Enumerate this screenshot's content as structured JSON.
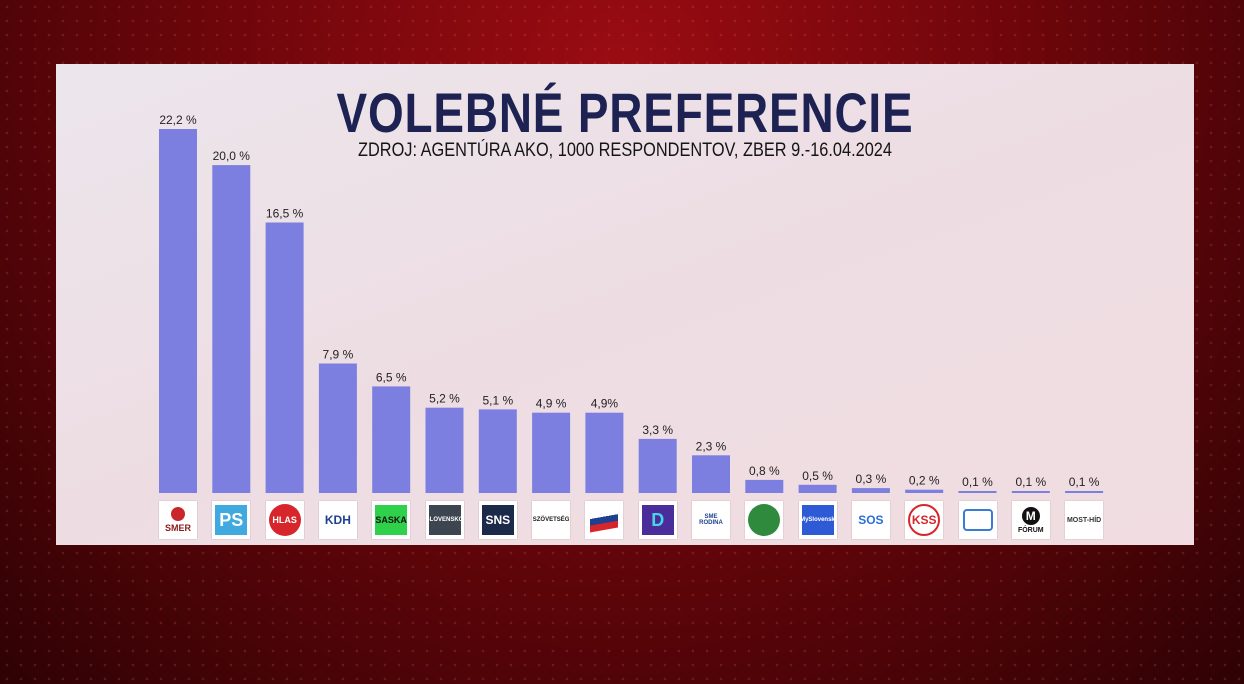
{
  "header": {
    "title": "VOLEBNÉ PREFERENCIE",
    "subtitle": "ZDROJ: AGENTÚRA AKO,  1000 RESPONDENTOV, ZBER 9.-16.04.2024"
  },
  "chart_data": {
    "type": "bar",
    "title": "VOLEBNÉ PREFERENCIE",
    "subtitle": "ZDROJ: AGENTÚRA AKO,  1000 RESPONDENTOV, ZBER 9.-16.04.2024",
    "categories": [
      "SMER",
      "PS",
      "HLAS",
      "KDH",
      "SASKA",
      "SLOVENSKO",
      "SNS",
      "SZÖVETSÉG",
      "REPUBLIKA",
      "DEMOKRATI",
      "SME RODINA",
      "MATICA",
      "MY SLOVENSKO",
      "SOS",
      "KSS",
      "MLADÝ SLOVÁCI",
      "FÓRUM",
      "MOST-HÍD"
    ],
    "values": [
      22.2,
      20.0,
      16.5,
      7.9,
      6.5,
      5.2,
      5.1,
      4.9,
      4.9,
      3.3,
      2.3,
      0.8,
      0.5,
      0.3,
      0.2,
      0.1,
      0.1,
      0.1
    ],
    "value_labels": [
      "22,2 %",
      "20,0 %",
      "16,5 %",
      "7,9 %",
      "6,5 %",
      "5,2 %",
      "5,1 %",
      "4,9 %",
      "4,9%",
      "3,3 %",
      "2,3 %",
      "0,8 %",
      "0,5 %",
      "0,3 %",
      "0,2 %",
      "0,1 %",
      "0,1 %",
      "0,1 %"
    ],
    "ylim": [
      0,
      22.2
    ],
    "grid": false,
    "bar_color": "#7d7fe0"
  },
  "logos": [
    {
      "icon": "smer-rose-icon",
      "text": "SMER",
      "fg": "#8a1b1b",
      "bg": "#ffffff"
    },
    {
      "icon": "ps-icon",
      "text": "PS",
      "fg": "#ffffff",
      "bg": "#3fa9e0"
    },
    {
      "icon": "hlas-icon",
      "text": "HLAS",
      "fg": "#ffffff",
      "bg": "#d6262b"
    },
    {
      "icon": "kdh-icon",
      "text": "KDH",
      "fg": "#1f3f8f",
      "bg": "#ffffff"
    },
    {
      "icon": "saska-icon",
      "text": "SASKA",
      "fg": "#111111",
      "bg": "#2fd14a"
    },
    {
      "icon": "slovensko-icon",
      "text": "SLOVENSKO",
      "fg": "#ffffff",
      "bg": "#3d4650"
    },
    {
      "icon": "sns-icon",
      "text": "SNS",
      "fg": "#ffffff",
      "bg": "#1c2a4a"
    },
    {
      "icon": "szovetseg-icon",
      "text": "SZÖVETSÉG",
      "fg": "#1a1a1a",
      "bg": "#ffffff"
    },
    {
      "icon": "republika-icon",
      "text": "",
      "fg": "#ffffff",
      "bg": "#ffffff"
    },
    {
      "icon": "demokrati-icon",
      "text": "D",
      "fg": "#49d3e6",
      "bg": "#4a2d9a"
    },
    {
      "icon": "sme-rodina-icon",
      "text": "SME RODINA",
      "fg": "#1f3f8f",
      "bg": "#ffffff"
    },
    {
      "icon": "matica-icon",
      "text": "",
      "fg": "#ffffff",
      "bg": "#2f8a3d"
    },
    {
      "icon": "my-slovensko-icon",
      "text": "#MySlovensko",
      "fg": "#ffffff",
      "bg": "#2f5ad6"
    },
    {
      "icon": "sos-icon",
      "text": "SOS",
      "fg": "#2b6fd6",
      "bg": "#ffffff"
    },
    {
      "icon": "kss-icon",
      "text": "KSS",
      "fg": "#d6262b",
      "bg": "#ffffff"
    },
    {
      "icon": "mladi-icon",
      "text": "",
      "fg": "#3a7bd5",
      "bg": "#ffffff"
    },
    {
      "icon": "forum-icon",
      "text": "FÓRUM",
      "fg": "#111111",
      "bg": "#ffffff"
    },
    {
      "icon": "most-hid-icon",
      "text": "MOST-HÍD",
      "fg": "#333333",
      "bg": "#ffffff"
    }
  ]
}
